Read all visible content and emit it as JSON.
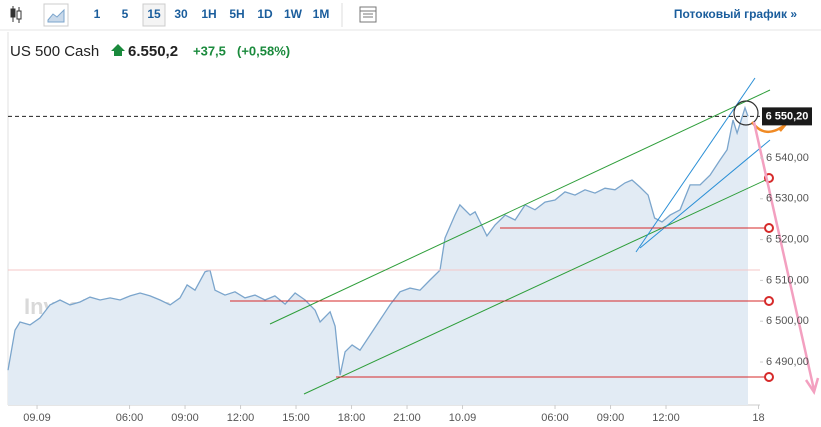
{
  "toolbar": {
    "intervals": [
      "1",
      "5",
      "15",
      "30",
      "1H",
      "5H",
      "1D",
      "1W",
      "1M"
    ],
    "active_interval": "15",
    "link": "Потоковый график »"
  },
  "header": {
    "instrument": "US 500 Cash",
    "price": "6.550,2",
    "change": "+37,5",
    "change_percent": "(+0,58%)"
  },
  "chart_data": {
    "type": "area",
    "color": "#7ba5cc",
    "fill": "#e2ebf4",
    "watermark": "Investing.com",
    "x": [
      -1.57,
      -1.19,
      -0.92,
      -0.38,
      0.16,
      0.7,
      1.24,
      1.78,
      2.32,
      2.86,
      3.41,
      3.95,
      4.49,
      5.03,
      5.57,
      6.11,
      6.65,
      7.19,
      7.73,
      8.11,
      8.54,
      9.08,
      9.35,
      9.62,
      10.16,
      10.7,
      11.24,
      11.78,
      12.32,
      12.86,
      13.41,
      13.95,
      14.49,
      15.03,
      15.3,
      15.84,
      16.11,
      16.38,
      16.65,
      17.03,
      17.46,
      18,
      18.54,
      19.08,
      19.62,
      20.16,
      20.7,
      21.24,
      21.78,
      22.05,
      22.59,
      22.86,
      23.41,
      23.68,
      23.95,
      24.32,
      24.76,
      25.3,
      25.84,
      26.38,
      26.92,
      27.46,
      28,
      28.54,
      29.08,
      29.62,
      30.16,
      30.7,
      31.24,
      31.78,
      32.16,
      32.59,
      33.03,
      33.38,
      33.78,
      34.22,
      34.76,
      35.3,
      35.84,
      36.38,
      36.92,
      37.3,
      37.62,
      37.84,
      38.27,
      38.43
    ],
    "values": [
      6488.0,
      6497.8,
      6499.8,
      6499.1,
      6500.8,
      6504.0,
      6505.2,
      6504.0,
      6504.7,
      6505.9,
      6505.2,
      6505.7,
      6505.2,
      6506.2,
      6506.9,
      6506.2,
      6505.2,
      6504.0,
      6505.7,
      6508.9,
      6507.6,
      6512.1,
      6512.5,
      6507.6,
      6506.4,
      6507.2,
      6505.7,
      6506.4,
      6505.2,
      6506.2,
      6504.2,
      6506.9,
      6505.2,
      6502.7,
      6499.8,
      6502.3,
      6498.8,
      6486.8,
      6492.5,
      6494.2,
      6492.9,
      6496.6,
      6500.3,
      6504.0,
      6507.2,
      6508.1,
      6507.6,
      6510.1,
      6512.5,
      6520.4,
      6526.0,
      6528.5,
      6526.0,
      6526.8,
      6524.3,
      6520.9,
      6523.6,
      6526.0,
      6524.8,
      6528.5,
      6527.3,
      6529.2,
      6529.7,
      6531.7,
      6530.9,
      6532.2,
      6531.4,
      6532.6,
      6532.2,
      6533.9,
      6534.6,
      6532.9,
      6530.9,
      6525.3,
      6524.3,
      6526.0,
      6527.3,
      6533.4,
      6533.4,
      6535.8,
      6539.5,
      6542.0,
      6549.3,
      6546.1,
      6552.3,
      6550.2
    ],
    "xlim": [
      -1.57,
      39.08
    ],
    "ylim": [
      6479.46,
      6570.88
    ],
    "xticks": [
      {
        "value": 0,
        "label": "09.09"
      },
      {
        "value": 5,
        "label": "06:00"
      },
      {
        "value": 8,
        "label": "09:00"
      },
      {
        "value": 11,
        "label": "12:00"
      },
      {
        "value": 14,
        "label": "15:00"
      },
      {
        "value": 17,
        "label": "18:00"
      },
      {
        "value": 20,
        "label": "21:00"
      },
      {
        "value": 23,
        "label": "10.09"
      },
      {
        "value": 28,
        "label": "06:00"
      },
      {
        "value": 31,
        "label": "09:00"
      },
      {
        "value": 34,
        "label": "12:00"
      },
      {
        "value": 39,
        "label": "18"
      }
    ],
    "yticks": [
      {
        "value": 6490,
        "label": "6 490,00"
      },
      {
        "value": 6500,
        "label": "6 500,00"
      },
      {
        "value": 6510,
        "label": "6 510,00"
      },
      {
        "value": 6520,
        "label": "6 520,00"
      },
      {
        "value": 6530,
        "label": "6 530,00"
      },
      {
        "value": 6540,
        "label": "6 540,00"
      }
    ],
    "price_line": {
      "value": 6550.2,
      "label": "6 550,20"
    }
  }
}
